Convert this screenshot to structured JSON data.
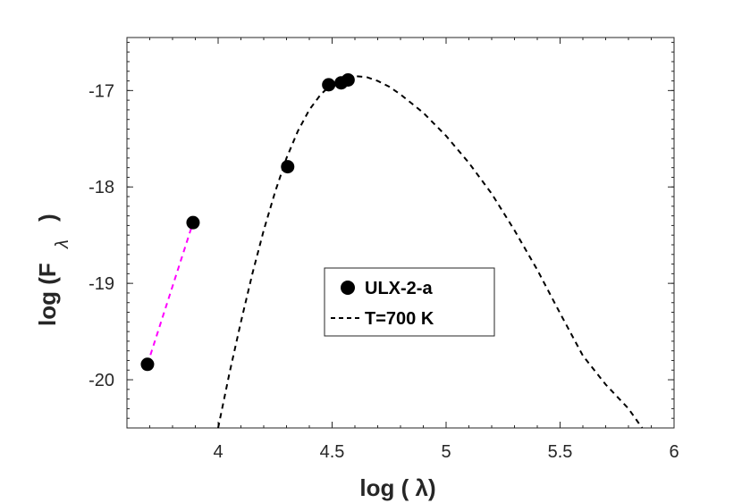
{
  "chart_data": {
    "type": "scatter",
    "xlabel": "log (  λ)",
    "ylabel": "log (F",
    "ylabel_subscript": "λ",
    "ylabel_close": ")",
    "xlim": [
      3.6,
      6.0
    ],
    "ylim": [
      -20.5,
      -16.45
    ],
    "xticks": [
      4,
      4.5,
      5,
      5.5,
      6
    ],
    "xtick_labels": [
      "4",
      "4.5",
      "5",
      "5.5",
      "6"
    ],
    "yticks": [
      -20,
      -19,
      -18,
      -17
    ],
    "ytick_labels": [
      "-20",
      "-19",
      "-18",
      "-17"
    ],
    "grid": false,
    "legend_position": "center",
    "series": [
      {
        "name": "ULX-2-a",
        "kind": "markers",
        "color": "#000000",
        "x": [
          3.69,
          3.89,
          4.305,
          4.485,
          4.54,
          4.57
        ],
        "y": [
          -19.84,
          -18.37,
          -17.79,
          -16.94,
          -16.92,
          -16.89
        ]
      },
      {
        "name": "T=700 K",
        "kind": "dashed-line",
        "color": "#000000",
        "x": [
          4.0,
          4.05,
          4.1,
          4.15,
          4.2,
          4.25,
          4.3,
          4.35,
          4.4,
          4.45,
          4.5,
          4.55,
          4.6,
          4.65,
          4.7,
          4.75,
          4.8,
          4.9,
          5.0,
          5.1,
          5.2,
          5.3,
          5.4,
          5.5,
          5.6,
          5.7,
          5.8,
          5.86
        ],
        "y": [
          -20.5,
          -19.93,
          -19.4,
          -18.9,
          -18.45,
          -18.05,
          -17.7,
          -17.42,
          -17.2,
          -17.04,
          -16.93,
          -16.87,
          -16.85,
          -16.86,
          -16.9,
          -16.96,
          -17.04,
          -17.23,
          -17.47,
          -17.75,
          -18.07,
          -18.45,
          -18.86,
          -19.31,
          -19.75,
          -20.05,
          -20.3,
          -20.5
        ]
      },
      {
        "name": "",
        "kind": "dashed-line",
        "color": "#ff00ff",
        "x": [
          3.69,
          3.89
        ],
        "y": [
          -19.84,
          -18.37
        ]
      }
    ]
  }
}
